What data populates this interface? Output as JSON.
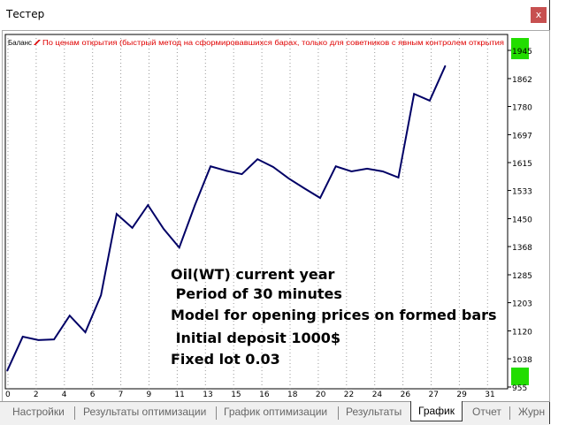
{
  "window": {
    "title": "Тестер",
    "close_label": "x"
  },
  "chart": {
    "legend_series": "Баланс",
    "legend_sep": " / ",
    "legend_model": "По ценам открытия (быстрый метод на сформировавшихся барах, только для советников с явным контролем открытия"
  },
  "annotation": [
    "Oil(WT) current year",
    " Period of 30 minutes",
    "Model for opening prices on formed bars",
    " Initial deposit 1000$",
    "Fixed lot 0.03"
  ],
  "tabs": [
    {
      "label": "Настройки"
    },
    {
      "label": "Результаты оптимизации"
    },
    {
      "label": "График оптимизации"
    },
    {
      "label": "Результаты"
    },
    {
      "label": "График",
      "active": true
    },
    {
      "label": "Отчет"
    },
    {
      "label": "Журн"
    }
  ],
  "colors": {
    "line": "#000066",
    "legend_red": "#e00000",
    "marker": "#22dd00"
  },
  "chart_data": {
    "type": "line",
    "title": "Баланс",
    "ylim": [
      955,
      1945
    ],
    "y_ticks": [
      1945,
      1862,
      1780,
      1697,
      1615,
      1533,
      1450,
      1368,
      1285,
      1203,
      1120,
      1038,
      955
    ],
    "x_tick_labels": [
      "0",
      "2",
      "4",
      "6",
      "7",
      "9",
      "11",
      "13",
      "15",
      "16",
      "18",
      "20",
      "22",
      "24",
      "26",
      "27",
      "29",
      "31"
    ],
    "x": [
      0,
      1,
      2,
      3,
      4,
      5,
      6,
      7,
      8,
      9,
      10,
      11,
      12,
      13,
      14,
      15,
      16,
      17,
      18,
      19,
      20,
      21,
      22,
      23,
      24,
      25,
      26,
      27,
      28
    ],
    "series": [
      {
        "name": "Баланс",
        "values": [
          1002,
          1103,
          1093,
          1095,
          1165,
          1116,
          1225,
          1464,
          1423,
          1490,
          1420,
          1365,
          1490,
          1604,
          1591,
          1581,
          1625,
          1602,
          1568,
          1539,
          1511,
          1604,
          1589,
          1597,
          1589,
          1571,
          1817,
          1797,
          1900
        ]
      }
    ],
    "x_count": 33,
    "grid": true
  }
}
